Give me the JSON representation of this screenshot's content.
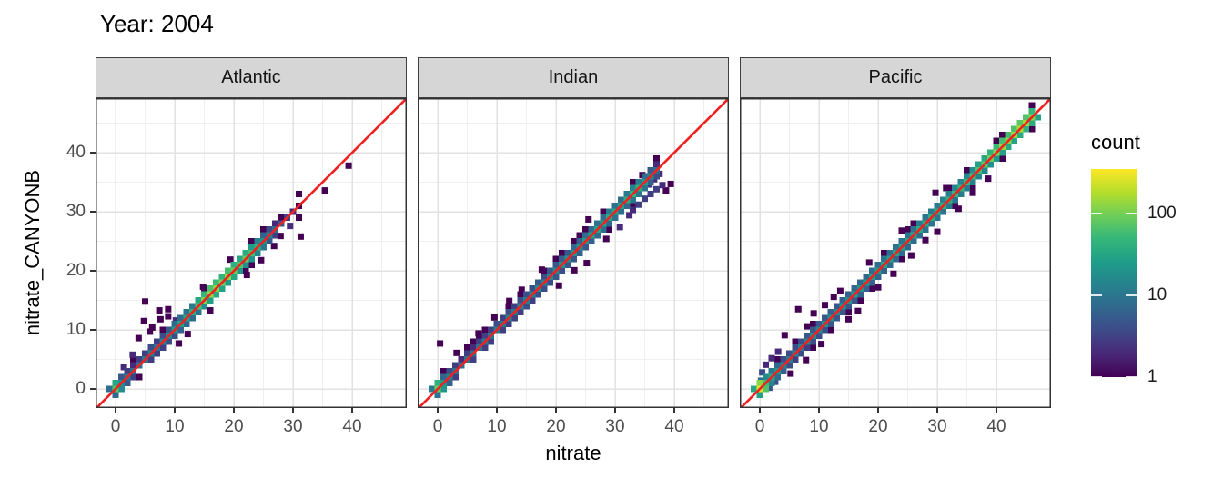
{
  "title": "Year: 2004",
  "chart_data": {
    "type": "heatmap",
    "subtype": "binned-2d-scatter-faceted",
    "title": "Year: 2004",
    "xlabel": "nitrate",
    "ylabel": "nitrate_CANYONB",
    "x_ticks": [
      0,
      10,
      20,
      30,
      40
    ],
    "y_ticks": [
      0,
      10,
      20,
      30,
      40
    ],
    "xlim": [
      -3.4,
      49.2
    ],
    "ylim": [
      -3.2,
      49.2
    ],
    "grid": {
      "major": [
        0,
        10,
        20,
        30,
        40
      ],
      "minor": [
        5,
        15,
        25,
        35,
        45
      ],
      "grid_on": true
    },
    "identity_line": {
      "slope": 1,
      "intercept": 0,
      "color": "#EE2222"
    },
    "bin_width": 1.08,
    "legend": {
      "title": "count",
      "ticks": [
        1,
        10,
        100
      ],
      "max_count": 350,
      "scale": "log10",
      "colormap": "viridis",
      "position": "right"
    },
    "colors": {
      "viridis_stops": [
        "#440154",
        "#482878",
        "#3e4a89",
        "#31688e",
        "#26828e",
        "#1f9e89",
        "#35b779",
        "#6ece58",
        "#b5de2b",
        "#fde725"
      ],
      "strip_fill": "#d6d6d6",
      "strip_border": "#3f3f3f",
      "panel_border": "#333333",
      "grid_major": "#e2e2e2",
      "grid_minor": "#efefef",
      "tick_label": "#4d4d4d",
      "text": "#000000",
      "panel_bg": "#ffffff"
    },
    "facets": [
      {
        "label": "Atlantic",
        "diagonal_range": [
          0,
          31
        ],
        "spine": [
          [
            0,
            70
          ],
          [
            1,
            18
          ],
          [
            2,
            10
          ],
          [
            3,
            8
          ],
          [
            4,
            9
          ],
          [
            5,
            10
          ],
          [
            6,
            12
          ],
          [
            7,
            10
          ],
          [
            8,
            14
          ],
          [
            9,
            16
          ],
          [
            10,
            22
          ],
          [
            11,
            28
          ],
          [
            12,
            30
          ],
          [
            13,
            40
          ],
          [
            14,
            70
          ],
          [
            15,
            110
          ],
          [
            16,
            140
          ],
          [
            17,
            120
          ],
          [
            18,
            100
          ],
          [
            19,
            130
          ],
          [
            20,
            90
          ],
          [
            21,
            70
          ],
          [
            22,
            85
          ],
          [
            23,
            60
          ],
          [
            24,
            45
          ],
          [
            25,
            20
          ],
          [
            26,
            12
          ],
          [
            27,
            8
          ],
          [
            28,
            5
          ],
          [
            29,
            3
          ],
          [
            30,
            2
          ],
          [
            31,
            1
          ]
        ],
        "outliers": [
          [
            5,
            14.8,
            1
          ],
          [
            7.4,
            13.3,
            1
          ],
          [
            7.6,
            11.8,
            1
          ],
          [
            4.8,
            11.5,
            1
          ],
          [
            8.9,
            12.3,
            1
          ],
          [
            8.9,
            13.5,
            1
          ],
          [
            6.2,
            10.4,
            1
          ],
          [
            5.8,
            9.7,
            1
          ],
          [
            3.9,
            8.6,
            1
          ],
          [
            10.2,
            11.6,
            2
          ],
          [
            10.7,
            7.7,
            1
          ],
          [
            12.2,
            9.3,
            1
          ],
          [
            16,
            13.3,
            1
          ],
          [
            22.2,
            19.3,
            1
          ],
          [
            31.3,
            25.8,
            1
          ],
          [
            35.4,
            33.6,
            1
          ],
          [
            39.4,
            37.8,
            1
          ],
          [
            27.9,
            25.9,
            1
          ],
          [
            24.6,
            21.8,
            1
          ],
          [
            14.8,
            17.3,
            1
          ],
          [
            19.4,
            21.9,
            1
          ],
          [
            2.9,
            5.8,
            2
          ],
          [
            1.4,
            3.7,
            2
          ],
          [
            26.8,
            24.2,
            1
          ],
          [
            29.5,
            27.6,
            2
          ]
        ]
      },
      {
        "label": "Indian",
        "diagonal_range": [
          0,
          37
        ],
        "spine": [
          [
            0,
            90
          ],
          [
            1,
            22
          ],
          [
            2,
            12
          ],
          [
            3,
            9
          ],
          [
            4,
            8
          ],
          [
            5,
            10
          ],
          [
            6,
            8
          ],
          [
            7,
            10
          ],
          [
            8,
            11
          ],
          [
            9,
            9
          ],
          [
            10,
            12
          ],
          [
            11,
            10
          ],
          [
            12,
            13
          ],
          [
            13,
            11
          ],
          [
            14,
            14
          ],
          [
            15,
            12
          ],
          [
            16,
            14
          ],
          [
            17,
            16
          ],
          [
            18,
            14
          ],
          [
            19,
            18
          ],
          [
            20,
            16
          ],
          [
            21,
            20
          ],
          [
            22,
            18
          ],
          [
            23,
            22
          ],
          [
            24,
            20
          ],
          [
            25,
            25
          ],
          [
            26,
            28
          ],
          [
            27,
            30
          ],
          [
            28,
            26
          ],
          [
            29,
            35
          ],
          [
            30,
            30
          ],
          [
            31,
            28
          ],
          [
            32,
            38
          ],
          [
            33,
            45
          ],
          [
            34,
            40
          ],
          [
            35,
            25
          ],
          [
            36,
            15
          ],
          [
            37,
            8
          ]
        ],
        "outliers": [
          [
            0.4,
            7.7,
            1
          ],
          [
            25.2,
            21.3,
            1
          ],
          [
            25.5,
            28.7,
            1
          ],
          [
            20.5,
            17.5,
            1
          ],
          [
            14.2,
            16.8,
            1
          ],
          [
            9.6,
            12.1,
            1
          ],
          [
            33,
            30.3,
            2
          ],
          [
            34,
            31.2,
            3
          ],
          [
            35,
            32.2,
            3
          ],
          [
            36,
            33,
            3
          ],
          [
            37,
            33.8,
            3
          ],
          [
            38,
            34.5,
            2
          ],
          [
            36.6,
            35.5,
            2
          ],
          [
            38.6,
            33.6,
            1
          ],
          [
            34.6,
            36.2,
            1
          ],
          [
            30.8,
            27.4,
            2
          ],
          [
            32.4,
            29.4,
            2
          ],
          [
            28.5,
            25.4,
            1
          ],
          [
            23.1,
            20.1,
            1
          ],
          [
            17.6,
            20.2,
            1
          ],
          [
            39.4,
            34.7,
            1
          ],
          [
            12.1,
            14.9,
            1
          ],
          [
            6.9,
            9.4,
            1
          ],
          [
            3.2,
            6.1,
            1
          ],
          [
            37.5,
            36.4,
            2
          ],
          [
            35.8,
            34.6,
            3
          ]
        ]
      },
      {
        "label": "Pacific",
        "diagonal_range": [
          0,
          46
        ],
        "spine": [
          [
            0,
            280
          ],
          [
            1,
            55
          ],
          [
            2,
            32
          ],
          [
            3,
            22
          ],
          [
            4,
            14
          ],
          [
            5,
            12
          ],
          [
            6,
            14
          ],
          [
            7,
            12
          ],
          [
            8,
            15
          ],
          [
            9,
            17
          ],
          [
            10,
            15
          ],
          [
            11,
            18
          ],
          [
            12,
            19
          ],
          [
            13,
            18
          ],
          [
            14,
            21
          ],
          [
            15,
            20
          ],
          [
            16,
            24
          ],
          [
            17,
            22
          ],
          [
            18,
            24
          ],
          [
            19,
            27
          ],
          [
            20,
            25
          ],
          [
            21,
            29
          ],
          [
            22,
            27
          ],
          [
            23,
            31
          ],
          [
            24,
            29
          ],
          [
            25,
            33
          ],
          [
            26,
            31
          ],
          [
            27,
            36
          ],
          [
            28,
            34
          ],
          [
            29,
            38
          ],
          [
            30,
            37
          ],
          [
            31,
            42
          ],
          [
            32,
            40
          ],
          [
            33,
            47
          ],
          [
            34,
            45
          ],
          [
            35,
            52
          ],
          [
            36,
            57
          ],
          [
            37,
            62
          ],
          [
            38,
            75
          ],
          [
            39,
            95
          ],
          [
            40,
            115
          ],
          [
            41,
            135
          ],
          [
            42,
            125
          ],
          [
            43,
            145
          ],
          [
            44,
            170
          ],
          [
            45,
            150
          ],
          [
            46,
            110
          ]
        ],
        "outliers": [
          [
            6.5,
            13.5,
            1
          ],
          [
            9.1,
            12.8,
            1
          ],
          [
            4.2,
            9.1,
            1
          ],
          [
            12.5,
            15.6,
            1
          ],
          [
            11,
            14.2,
            1
          ],
          [
            8,
            10.6,
            1
          ],
          [
            13.6,
            16.6,
            1
          ],
          [
            15,
            11.8,
            1
          ],
          [
            16.6,
            13.2,
            1
          ],
          [
            20,
            17.2,
            1
          ],
          [
            25.6,
            22.6,
            1
          ],
          [
            28,
            25.2,
            1
          ],
          [
            30,
            26.6,
            1
          ],
          [
            2,
            5.2,
            2
          ],
          [
            1,
            4.1,
            2
          ],
          [
            0.4,
            2.8,
            4
          ],
          [
            3.1,
            6.3,
            2
          ],
          [
            22.6,
            19.5,
            1
          ],
          [
            18.5,
            21.4,
            1
          ],
          [
            29.7,
            33.2,
            1
          ],
          [
            33.6,
            30.5,
            1
          ],
          [
            36,
            33.2,
            1
          ],
          [
            38.6,
            35.6,
            1
          ],
          [
            31.5,
            34,
            1
          ],
          [
            5.2,
            2.6,
            1
          ],
          [
            7.8,
            4.9,
            1
          ],
          [
            1.6,
            0.2,
            5
          ],
          [
            2.6,
            1.2,
            4
          ],
          [
            0.2,
            1.4,
            8
          ],
          [
            24,
            26.8,
            1
          ],
          [
            10.4,
            7.6,
            1
          ]
        ]
      }
    ]
  }
}
